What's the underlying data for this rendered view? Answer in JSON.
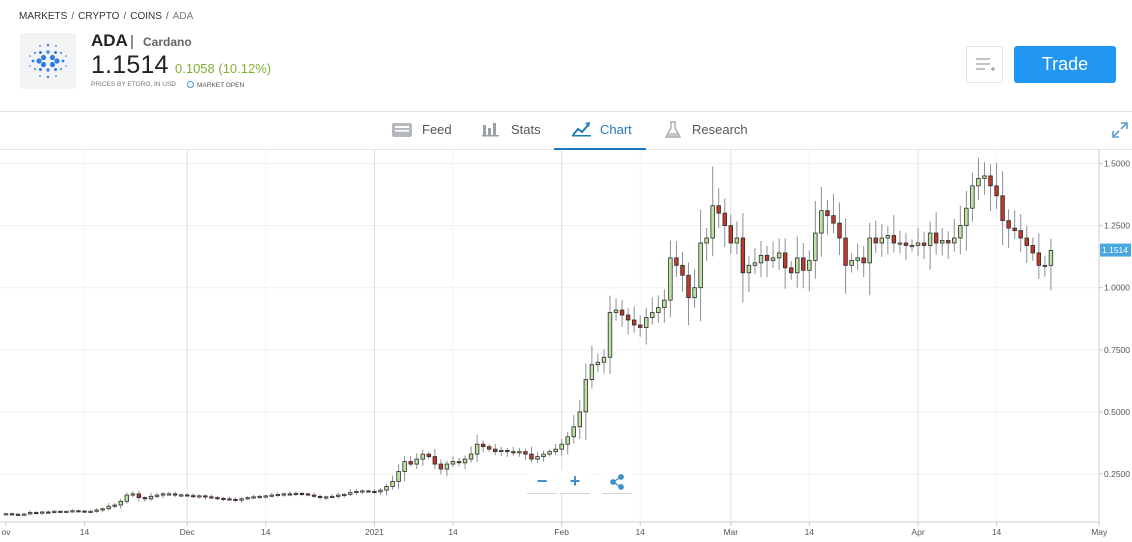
{
  "breadcrumb": {
    "items": [
      "MARKETS",
      "CRYPTO",
      "COINS"
    ],
    "current": "ADA",
    "separator": "/"
  },
  "instrument": {
    "symbol": "ADA",
    "divider": "|",
    "name": "Cardano",
    "price": "1.1514",
    "change": "0.1058 (10.12%)",
    "price_note": "PRICES BY ETORO, IN USD",
    "market_status": "MARKET OPEN",
    "logo_icon": "cardano-logo-icon"
  },
  "actions": {
    "watchlist_icon": "add-to-watchlist-icon",
    "trade_label": "Trade"
  },
  "tabs": [
    {
      "label": "Feed",
      "icon": "feed-icon",
      "active": false
    },
    {
      "label": "Stats",
      "icon": "stats-icon",
      "active": false
    },
    {
      "label": "Chart",
      "icon": "chart-icon",
      "active": true
    },
    {
      "label": "Research",
      "icon": "research-icon",
      "active": false
    }
  ],
  "colors": {
    "accent": "#2196f3",
    "tab_active": "#1f7bb8",
    "change_positive": "#7fb031",
    "candle_up": "#bde3a3",
    "candle_down": "#c0392b",
    "price_marker": "#4aa8e0"
  },
  "chart_controls": {
    "zoom_out": "−",
    "zoom_in": "+",
    "share_icon": "share-icon"
  },
  "chart_data": {
    "type": "candlestick",
    "y_ticks": [
      "1.5000",
      "1.2500",
      "1.0000",
      "0.7500",
      "0.5000",
      "0.2500"
    ],
    "y_tick_values": [
      1.5,
      1.25,
      1.0,
      0.75,
      0.5,
      0.25
    ],
    "ylim": [
      0.05,
      1.56
    ],
    "current_price_label": "1.1514",
    "current_price": 1.1514,
    "x_ticks": [
      {
        "label": "ov",
        "day": 0
      },
      {
        "label": "14",
        "day": 13
      },
      {
        "label": "Dec",
        "day": 30
      },
      {
        "label": "14",
        "day": 43
      },
      {
        "label": "2021",
        "day": 61
      },
      {
        "label": "14",
        "day": 74
      },
      {
        "label": "Feb",
        "day": 92
      },
      {
        "label": "14",
        "day": 105
      },
      {
        "label": "Mar",
        "day": 120
      },
      {
        "label": "14",
        "day": 133
      },
      {
        "label": "Apr",
        "day": 151
      },
      {
        "label": "14",
        "day": 164
      },
      {
        "label": "May",
        "day": 181
      }
    ],
    "month_grid_days": [
      30,
      61,
      92,
      120,
      151
    ],
    "grid": true,
    "closes": [
      0.09,
      0.088,
      0.087,
      0.089,
      0.095,
      0.093,
      0.097,
      0.096,
      0.1,
      0.099,
      0.1,
      0.102,
      0.101,
      0.1,
      0.1,
      0.105,
      0.11,
      0.12,
      0.125,
      0.14,
      0.165,
      0.17,
      0.155,
      0.15,
      0.16,
      0.165,
      0.17,
      0.17,
      0.165,
      0.166,
      0.163,
      0.16,
      0.162,
      0.158,
      0.155,
      0.152,
      0.15,
      0.148,
      0.145,
      0.15,
      0.155,
      0.158,
      0.16,
      0.162,
      0.165,
      0.168,
      0.17,
      0.168,
      0.172,
      0.17,
      0.165,
      0.16,
      0.155,
      0.158,
      0.16,
      0.165,
      0.168,
      0.175,
      0.18,
      0.182,
      0.18,
      0.178,
      0.185,
      0.2,
      0.22,
      0.26,
      0.3,
      0.29,
      0.31,
      0.33,
      0.32,
      0.29,
      0.27,
      0.29,
      0.3,
      0.295,
      0.31,
      0.33,
      0.37,
      0.36,
      0.35,
      0.34,
      0.345,
      0.34,
      0.335,
      0.34,
      0.33,
      0.31,
      0.32,
      0.33,
      0.34,
      0.35,
      0.37,
      0.4,
      0.44,
      0.5,
      0.63,
      0.69,
      0.7,
      0.72,
      0.9,
      0.91,
      0.89,
      0.87,
      0.85,
      0.84,
      0.88,
      0.9,
      0.92,
      0.95,
      1.12,
      1.09,
      1.05,
      0.96,
      1.0,
      1.18,
      1.2,
      1.33,
      1.3,
      1.25,
      1.18,
      1.2,
      1.06,
      1.09,
      1.1,
      1.13,
      1.11,
      1.12,
      1.14,
      1.08,
      1.06,
      1.12,
      1.07,
      1.11,
      1.22,
      1.31,
      1.29,
      1.26,
      1.2,
      1.09,
      1.11,
      1.12,
      1.1,
      1.2,
      1.18,
      1.2,
      1.21,
      1.18,
      1.18,
      1.17,
      1.17,
      1.18,
      1.17,
      1.22,
      1.18,
      1.19,
      1.18,
      1.2,
      1.25,
      1.32,
      1.41,
      1.44,
      1.45,
      1.41,
      1.37,
      1.27,
      1.24,
      1.23,
      1.2,
      1.17,
      1.14,
      1.09,
      1.09,
      1.15
    ]
  }
}
